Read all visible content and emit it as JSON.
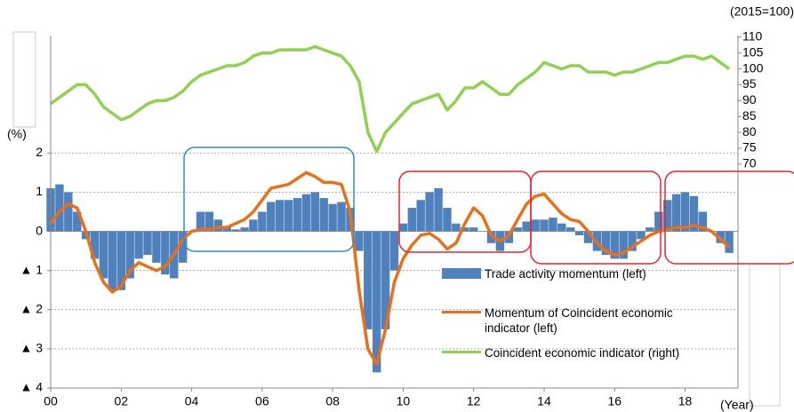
{
  "chart_data": {
    "type": "bar",
    "x_label": "(Year)",
    "y_label": "(%)",
    "y2_label": "(2015=100)",
    "xlim": [
      2000,
      2019.5
    ],
    "ylim": [
      -4,
      5
    ],
    "y2lim": [
      -0.5,
      110.5
    ],
    "xticks": [
      {
        "value": 2000,
        "label": "00"
      },
      {
        "value": 2002,
        "label": "02"
      },
      {
        "value": 2004,
        "label": "04"
      },
      {
        "value": 2006,
        "label": "06"
      },
      {
        "value": 2008,
        "label": "08"
      },
      {
        "value": 2010,
        "label": "10"
      },
      {
        "value": 2012,
        "label": "12"
      },
      {
        "value": 2014,
        "label": "14"
      },
      {
        "value": 2016,
        "label": "16"
      },
      {
        "value": 2018,
        "label": "18"
      }
    ],
    "yticks": [
      {
        "value": -4,
        "label": "▲ 4"
      },
      {
        "value": -3,
        "label": "▲ 3"
      },
      {
        "value": -2,
        "label": "▲ 2"
      },
      {
        "value": -1,
        "label": "▲ 1"
      },
      0,
      1,
      2
    ],
    "y2ticks": [
      70,
      75,
      80,
      85,
      90,
      95,
      100,
      105,
      110
    ],
    "grid": true,
    "x": [
      2000,
      2000.25,
      2000.5,
      2000.75,
      2001,
      2001.25,
      2001.5,
      2001.75,
      2002,
      2002.25,
      2002.5,
      2002.75,
      2003,
      2003.25,
      2003.5,
      2003.75,
      2004,
      2004.25,
      2004.5,
      2004.75,
      2005,
      2005.25,
      2005.5,
      2005.75,
      2006,
      2006.25,
      2006.5,
      2006.75,
      2007,
      2007.25,
      2007.5,
      2007.75,
      2008,
      2008.25,
      2008.5,
      2008.75,
      2009,
      2009.25,
      2009.5,
      2009.75,
      2010,
      2010.25,
      2010.5,
      2010.75,
      2011,
      2011.25,
      2011.5,
      2011.75,
      2012,
      2012.25,
      2012.5,
      2012.75,
      2013,
      2013.25,
      2013.5,
      2013.75,
      2014,
      2014.25,
      2014.5,
      2014.75,
      2015,
      2015.25,
      2015.5,
      2015.75,
      2016,
      2016.25,
      2016.5,
      2016.75,
      2017,
      2017.25,
      2017.5,
      2017.75,
      2018,
      2018.25,
      2018.5,
      2018.75,
      2019,
      2019.25
    ],
    "series": [
      {
        "name": "Trade activity momentum (left)",
        "type": "bar",
        "color": "#4f81bd",
        "values": [
          1.1,
          1.2,
          1.0,
          0.5,
          -0.2,
          -0.7,
          -1.2,
          -1.5,
          -1.5,
          -1.2,
          -0.7,
          -0.6,
          -0.8,
          -1.1,
          -1.2,
          -0.8,
          0.0,
          0.5,
          0.5,
          0.3,
          0.1,
          0.05,
          0.1,
          0.3,
          0.5,
          0.75,
          0.8,
          0.8,
          0.85,
          0.95,
          1.0,
          0.85,
          0.7,
          0.75,
          0.6,
          -0.5,
          -2.5,
          -3.6,
          -2.5,
          -1.0,
          0.2,
          0.6,
          0.8,
          1.0,
          1.1,
          0.6,
          0.2,
          0.1,
          0.1,
          0.0,
          -0.3,
          -0.5,
          -0.3,
          0.1,
          0.25,
          0.3,
          0.3,
          0.35,
          0.2,
          0.1,
          -0.1,
          -0.3,
          -0.5,
          -0.6,
          -0.7,
          -0.7,
          -0.5,
          -0.2,
          0.1,
          0.5,
          0.8,
          0.95,
          1.0,
          0.9,
          0.5,
          0.0,
          -0.3,
          -0.55
        ]
      },
      {
        "name": "Momentum of Coincident economic indicator (left)",
        "type": "line",
        "color": "#e8701a",
        "values": [
          0.2,
          0.5,
          0.7,
          0.6,
          0.0,
          -0.8,
          -1.3,
          -1.55,
          -1.4,
          -1.0,
          -0.8,
          -0.9,
          -1.0,
          -0.9,
          -0.6,
          -0.2,
          0.0,
          0.05,
          0.05,
          0.1,
          0.1,
          0.2,
          0.3,
          0.5,
          0.8,
          1.1,
          1.15,
          1.2,
          1.35,
          1.5,
          1.4,
          1.25,
          1.25,
          1.2,
          0.5,
          -1.5,
          -3.0,
          -3.4,
          -2.5,
          -1.3,
          -0.7,
          -0.35,
          -0.1,
          -0.05,
          -0.2,
          -0.45,
          -0.3,
          0.2,
          0.6,
          0.4,
          -0.1,
          -0.25,
          -0.1,
          0.3,
          0.7,
          0.9,
          0.95,
          0.7,
          0.45,
          0.3,
          0.25,
          0.0,
          -0.3,
          -0.5,
          -0.6,
          -0.55,
          -0.4,
          -0.25,
          -0.1,
          0.0,
          0.05,
          0.1,
          0.1,
          0.15,
          0.1,
          0.0,
          -0.2,
          -0.4
        ]
      },
      {
        "name": "Coincident economic indicator (right)",
        "type": "line",
        "axis": "y2",
        "color": "#92d050",
        "values": [
          89,
          91,
          93,
          95,
          95,
          92,
          88,
          86,
          84,
          85,
          87,
          89,
          90,
          90,
          91,
          93,
          96,
          98,
          99,
          100,
          101,
          101,
          102,
          104,
          105,
          105,
          106,
          106,
          106,
          106,
          107,
          106,
          105,
          104,
          101,
          96,
          80,
          74,
          80,
          83,
          86,
          89,
          90,
          91,
          92,
          87,
          90,
          94,
          94,
          96,
          94,
          92,
          92,
          95,
          97,
          99,
          102,
          101,
          100,
          101,
          101,
          99,
          99,
          99,
          98,
          99,
          99,
          100,
          101,
          102,
          102,
          103,
          104,
          104,
          103,
          104,
          102,
          100
        ]
      }
    ]
  }
}
